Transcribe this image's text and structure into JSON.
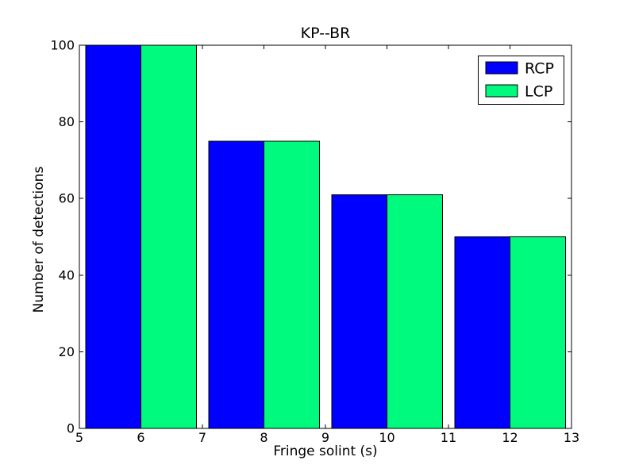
{
  "chart_data": {
    "type": "bar",
    "title": "KP--BR",
    "xlabel": "Fringe solint (s)",
    "ylabel": "Number of detections",
    "xlim": [
      5,
      13
    ],
    "ylim": [
      0,
      100
    ],
    "xticks": [
      5,
      6,
      7,
      8,
      9,
      10,
      11,
      12,
      13
    ],
    "yticks": [
      0,
      20,
      40,
      60,
      80,
      100
    ],
    "grid": false,
    "bar_group_centers": [
      6,
      8,
      10,
      12
    ],
    "bar_width_units": 0.9,
    "series": [
      {
        "name": "RCP",
        "color": "#0000ff",
        "values": [
          100,
          75,
          61,
          50
        ]
      },
      {
        "name": "LCP",
        "color": "#00fa7d",
        "values": [
          100,
          75,
          61,
          50
        ]
      }
    ],
    "legend": {
      "position": "upper right",
      "entries": [
        "RCP",
        "LCP"
      ]
    },
    "axis_color": "#000000",
    "text_color": "#000000",
    "background_color": "#ffffff"
  }
}
